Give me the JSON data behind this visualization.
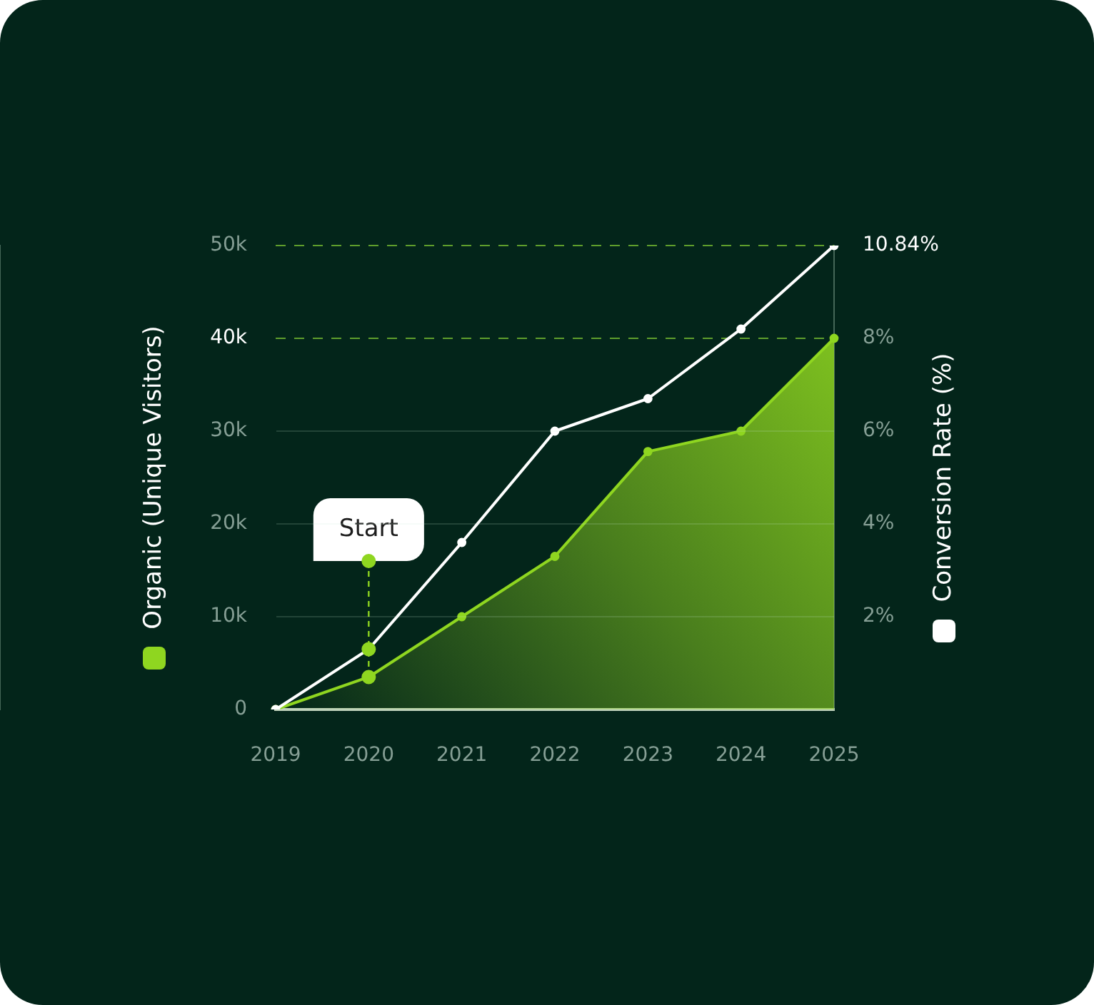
{
  "chart_data": {
    "type": "area",
    "categories": [
      "2019",
      "2020",
      "2021",
      "2022",
      "2023",
      "2024",
      "2025"
    ],
    "series": [
      {
        "color": "#8fd620",
        "values": [
          0,
          3500,
          10000,
          16500,
          27800,
          30000,
          40000
        ]
      },
      {
        "type": "line",
        "axis": "y2",
        "color": "#ffffff",
        "values": [
          0,
          1.3,
          3.6,
          6.0,
          6.7,
          8.2,
          10
        ]
      }
    ],
    "ylabel": "Organic (Unique Visitors)",
    "y2label": "Conversion Rate (%)",
    "ylim": [
      0,
      50000
    ],
    "yticks": [
      0,
      {
        "value": 10000,
        "label": "10k"
      },
      {
        "value": 20000,
        "label": "20k"
      },
      {
        "value": 30000,
        "label": "30k"
      },
      {
        "value": 40000,
        "label": "40k"
      },
      {
        "value": 50000,
        "label": "50k"
      }
    ],
    "y2lim": [
      0,
      10
    ],
    "y2ticks": [
      {
        "value": 2,
        "label": "2%"
      },
      {
        "value": 4,
        "label": "4%"
      },
      {
        "value": 6,
        "label": "6%"
      },
      {
        "value": 8,
        "label": "8%"
      }
    ],
    "grid": "y",
    "marker": "circle",
    "ref_lines": [
      {
        "axis": "y",
        "value": 40000,
        "color": "#5f9e2c",
        "line_style": "dashed"
      },
      {
        "axis": "y",
        "value": 50000,
        "color": "#5f9e2c",
        "line_style": "dashed"
      }
    ],
    "annotations": [
      {
        "text": "Start",
        "x": "2020",
        "y": 16000
      },
      "10.84%"
    ]
  }
}
